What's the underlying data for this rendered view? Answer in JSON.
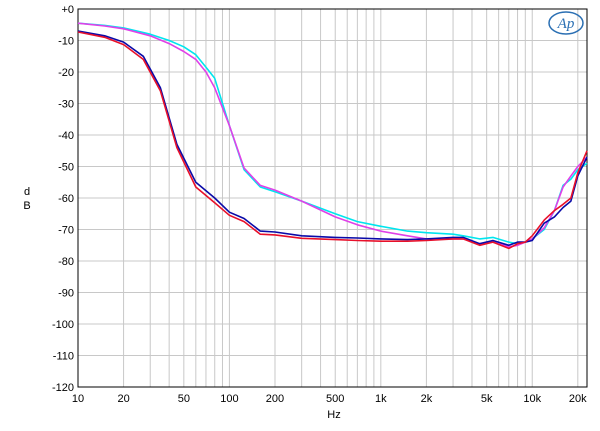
{
  "logo": {
    "text": "Ap",
    "color": "#2a6fb3"
  },
  "chart_data": {
    "type": "line",
    "title": "",
    "xlabel": "Hz",
    "ylabel": "dB",
    "ylabel_chars": [
      "d",
      "B"
    ],
    "xscale": "log",
    "xlim": [
      10,
      23000
    ],
    "ylim": [
      -120,
      0
    ],
    "grid": true,
    "x_ticks": [
      {
        "value": 10,
        "label": "10"
      },
      {
        "value": 20,
        "label": "20"
      },
      {
        "value": 50,
        "label": "50"
      },
      {
        "value": 100,
        "label": "100"
      },
      {
        "value": 200,
        "label": "200"
      },
      {
        "value": 500,
        "label": "500"
      },
      {
        "value": 1000,
        "label": "1k"
      },
      {
        "value": 2000,
        "label": "2k"
      },
      {
        "value": 5000,
        "label": "5k"
      },
      {
        "value": 10000,
        "label": "10k"
      },
      {
        "value": 20000,
        "label": "20k"
      }
    ],
    "y_ticks": [
      {
        "value": 0,
        "label": "+0"
      },
      {
        "value": -10,
        "label": "-10"
      },
      {
        "value": -20,
        "label": "-20"
      },
      {
        "value": -30,
        "label": "-30"
      },
      {
        "value": -40,
        "label": "-40"
      },
      {
        "value": -50,
        "label": "-50"
      },
      {
        "value": -60,
        "label": "-60"
      },
      {
        "value": -70,
        "label": "-70"
      },
      {
        "value": -80,
        "label": "-80"
      },
      {
        "value": -90,
        "label": "-90"
      },
      {
        "value": -100,
        "label": "-100"
      },
      {
        "value": -110,
        "label": "-110"
      },
      {
        "value": -120,
        "label": "-120"
      }
    ],
    "series": [
      {
        "color": "#00e5ee",
        "points": [
          [
            10,
            -4.5
          ],
          [
            15,
            -5.2
          ],
          [
            20,
            -6
          ],
          [
            30,
            -8
          ],
          [
            40,
            -10
          ],
          [
            50,
            -12
          ],
          [
            60,
            -14.5
          ],
          [
            70,
            -18.5
          ],
          [
            80,
            -22
          ],
          [
            100,
            -37
          ],
          [
            125,
            -51
          ],
          [
            160,
            -56.5
          ],
          [
            200,
            -58
          ],
          [
            300,
            -61
          ],
          [
            500,
            -65
          ],
          [
            700,
            -67.5
          ],
          [
            1000,
            -69
          ],
          [
            1500,
            -70.5
          ],
          [
            2000,
            -71
          ],
          [
            3000,
            -71.5
          ],
          [
            3500,
            -72
          ],
          [
            4500,
            -73
          ],
          [
            5500,
            -72.5
          ],
          [
            7000,
            -74
          ],
          [
            8000,
            -74.5
          ],
          [
            9000,
            -74
          ],
          [
            10000,
            -73
          ],
          [
            12000,
            -70
          ],
          [
            14000,
            -64
          ],
          [
            16000,
            -56
          ],
          [
            18000,
            -54
          ],
          [
            20000,
            -51
          ],
          [
            23000,
            -49
          ]
        ]
      },
      {
        "color": "#e040e8",
        "points": [
          [
            10,
            -4.5
          ],
          [
            15,
            -5.4
          ],
          [
            20,
            -6.3
          ],
          [
            30,
            -8.5
          ],
          [
            40,
            -11
          ],
          [
            50,
            -13.5
          ],
          [
            60,
            -16
          ],
          [
            70,
            -20
          ],
          [
            80,
            -25
          ],
          [
            100,
            -37
          ],
          [
            125,
            -50.5
          ],
          [
            160,
            -56
          ],
          [
            200,
            -57.5
          ],
          [
            300,
            -61
          ],
          [
            500,
            -66
          ],
          [
            700,
            -68.5
          ],
          [
            1000,
            -70.5
          ],
          [
            1500,
            -72
          ],
          [
            2000,
            -73
          ],
          [
            3000,
            -73
          ],
          [
            3500,
            -73
          ],
          [
            4500,
            -74.5
          ],
          [
            5500,
            -74
          ],
          [
            7000,
            -75.5
          ],
          [
            8000,
            -75
          ],
          [
            9000,
            -74
          ],
          [
            10000,
            -73
          ],
          [
            12000,
            -69.5
          ],
          [
            14000,
            -64
          ],
          [
            16000,
            -56.5
          ],
          [
            18000,
            -53
          ],
          [
            20000,
            -50
          ],
          [
            23000,
            -47
          ]
        ]
      },
      {
        "color": "#0a0aa8",
        "points": [
          [
            10,
            -7
          ],
          [
            15,
            -8.5
          ],
          [
            20,
            -10.5
          ],
          [
            27,
            -15
          ],
          [
            35,
            -25
          ],
          [
            45,
            -43
          ],
          [
            60,
            -55
          ],
          [
            80,
            -60
          ],
          [
            100,
            -64.5
          ],
          [
            125,
            -66.5
          ],
          [
            160,
            -70.5
          ],
          [
            200,
            -70.8
          ],
          [
            300,
            -72
          ],
          [
            500,
            -72.5
          ],
          [
            700,
            -72.7
          ],
          [
            1000,
            -73
          ],
          [
            1500,
            -73.2
          ],
          [
            2000,
            -73
          ],
          [
            3000,
            -72.5
          ],
          [
            3500,
            -72.5
          ],
          [
            4500,
            -74.5
          ],
          [
            5500,
            -73.5
          ],
          [
            7000,
            -75
          ],
          [
            8000,
            -74
          ],
          [
            9000,
            -74
          ],
          [
            10000,
            -73.5
          ],
          [
            12000,
            -68
          ],
          [
            14000,
            -66
          ],
          [
            16000,
            -63
          ],
          [
            18000,
            -61
          ],
          [
            20000,
            -53
          ],
          [
            23000,
            -47
          ]
        ]
      },
      {
        "color": "#e8102a",
        "points": [
          [
            10,
            -7.3
          ],
          [
            15,
            -9
          ],
          [
            20,
            -11.3
          ],
          [
            27,
            -16
          ],
          [
            35,
            -26
          ],
          [
            45,
            -44
          ],
          [
            60,
            -56.5
          ],
          [
            80,
            -61.5
          ],
          [
            100,
            -65.5
          ],
          [
            125,
            -67.5
          ],
          [
            160,
            -71.5
          ],
          [
            200,
            -71.7
          ],
          [
            300,
            -72.8
          ],
          [
            500,
            -73.2
          ],
          [
            700,
            -73.5
          ],
          [
            1000,
            -73.7
          ],
          [
            1500,
            -73.7
          ],
          [
            2000,
            -73.5
          ],
          [
            3000,
            -73
          ],
          [
            3500,
            -73
          ],
          [
            4500,
            -75
          ],
          [
            5500,
            -74
          ],
          [
            7000,
            -76
          ],
          [
            8000,
            -74.5
          ],
          [
            9000,
            -74
          ],
          [
            10000,
            -72
          ],
          [
            12000,
            -67
          ],
          [
            14000,
            -64
          ],
          [
            16000,
            -62
          ],
          [
            18000,
            -60
          ],
          [
            20000,
            -52
          ],
          [
            23000,
            -45
          ]
        ]
      }
    ]
  }
}
